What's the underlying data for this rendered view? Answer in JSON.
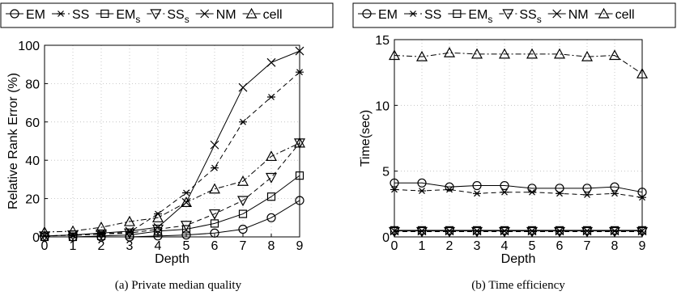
{
  "captions": {
    "a": "(a)  Private median quality",
    "b": "(b)  Time efficiency"
  },
  "chart_data": [
    {
      "type": "line",
      "xlabel": "Depth",
      "ylabel": "Relative Rank Error (%)",
      "x": [
        0,
        1,
        2,
        3,
        4,
        5,
        6,
        7,
        8,
        9
      ],
      "xlim": [
        0,
        9
      ],
      "ylim": [
        0,
        100
      ],
      "yticks": [
        0,
        20,
        40,
        60,
        80,
        100
      ],
      "grid": true,
      "legend": "top",
      "series": [
        {
          "name": "EM",
          "marker": "circle",
          "dash": "solid",
          "values": [
            0,
            0,
            0,
            0,
            0.5,
            1,
            2,
            4,
            10,
            19
          ]
        },
        {
          "name": "SS",
          "marker": "asterisk",
          "dash": "dashed",
          "values": [
            0.5,
            0.8,
            1.5,
            2.5,
            12,
            23,
            36,
            60,
            73,
            86
          ]
        },
        {
          "name": "EM_s",
          "marker": "square",
          "dash": "solid",
          "values": [
            0,
            0,
            0.5,
            1,
            3,
            4,
            7,
            12,
            21,
            32
          ]
        },
        {
          "name": "SS_s",
          "marker": "triangle-down",
          "dash": "dashed",
          "values": [
            0.5,
            1,
            1.5,
            2,
            4,
            6,
            12,
            19,
            31,
            49
          ]
        },
        {
          "name": "NM",
          "marker": "x",
          "dash": "solid",
          "values": [
            0.5,
            1,
            2,
            3,
            5,
            18,
            48,
            78,
            91,
            97
          ]
        },
        {
          "name": "cell",
          "marker": "triangle-up",
          "dash": "dashdot",
          "values": [
            2.5,
            3,
            5,
            8,
            10,
            18,
            25,
            29,
            42,
            49
          ]
        }
      ]
    },
    {
      "type": "line",
      "xlabel": "Depth",
      "ylabel": "Time(sec)",
      "x": [
        0,
        1,
        2,
        3,
        4,
        5,
        6,
        7,
        8,
        9
      ],
      "xlim": [
        0,
        9
      ],
      "ylim": [
        0,
        15
      ],
      "yticks": [
        0,
        5,
        10,
        15
      ],
      "grid": true,
      "legend": "top",
      "series": [
        {
          "name": "EM",
          "marker": "circle",
          "dash": "solid",
          "values": [
            4.1,
            4.1,
            3.8,
            3.9,
            3.9,
            3.7,
            3.7,
            3.7,
            3.8,
            3.4
          ]
        },
        {
          "name": "SS",
          "marker": "asterisk",
          "dash": "dashed",
          "values": [
            3.6,
            3.5,
            3.6,
            3.3,
            3.4,
            3.4,
            3.3,
            3.2,
            3.3,
            3.0
          ]
        },
        {
          "name": "EM_s",
          "marker": "square",
          "dash": "solid",
          "values": [
            0.5,
            0.5,
            0.5,
            0.5,
            0.5,
            0.5,
            0.5,
            0.5,
            0.5,
            0.5
          ]
        },
        {
          "name": "SS_s",
          "marker": "triangle-down",
          "dash": "dashed",
          "values": [
            0.4,
            0.4,
            0.4,
            0.4,
            0.4,
            0.4,
            0.4,
            0.4,
            0.4,
            0.4
          ]
        },
        {
          "name": "NM",
          "marker": "x",
          "dash": "solid",
          "values": [
            0.45,
            0.45,
            0.45,
            0.45,
            0.45,
            0.45,
            0.45,
            0.45,
            0.45,
            0.45
          ]
        },
        {
          "name": "cell",
          "marker": "triangle-up",
          "dash": "dashdot",
          "values": [
            13.8,
            13.7,
            14.0,
            13.9,
            13.9,
            13.9,
            13.9,
            13.7,
            13.8,
            12.4
          ]
        }
      ]
    }
  ]
}
